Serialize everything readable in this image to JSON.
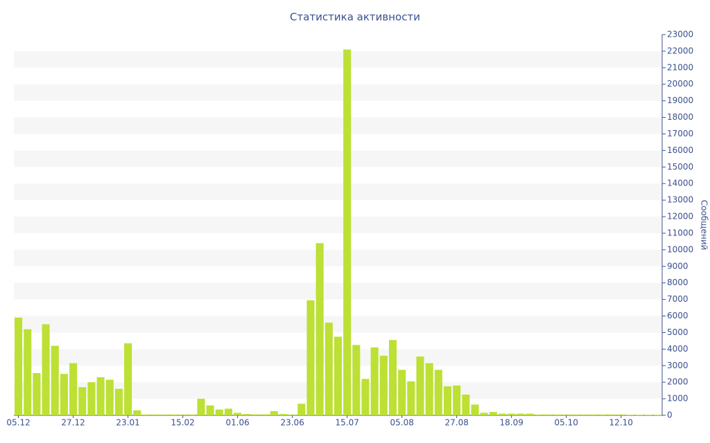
{
  "chart_data": {
    "type": "bar",
    "title": "Статистика активности",
    "y_label": "Сообщений",
    "categories": [
      "05.12",
      null,
      null,
      null,
      null,
      null,
      "27.12",
      null,
      null,
      null,
      null,
      null,
      "23.01",
      null,
      null,
      null,
      null,
      null,
      "15.02",
      null,
      null,
      null,
      null,
      null,
      "01.06",
      null,
      null,
      null,
      null,
      null,
      "23.06",
      null,
      null,
      null,
      null,
      null,
      "15.07",
      null,
      null,
      null,
      null,
      null,
      "05.08",
      null,
      null,
      null,
      null,
      null,
      "27.08",
      null,
      null,
      null,
      null,
      null,
      "18.09",
      null,
      null,
      null,
      null,
      null,
      "05.10",
      null,
      null,
      null,
      null,
      null,
      "12.10",
      null,
      null,
      null,
      null
    ],
    "values": [
      5900,
      5200,
      2550,
      5500,
      4200,
      2500,
      3150,
      1700,
      2000,
      2300,
      2150,
      1600,
      4350,
      300,
      50,
      50,
      50,
      50,
      50,
      50,
      1000,
      600,
      350,
      400,
      150,
      80,
      60,
      60,
      250,
      80,
      50,
      700,
      6950,
      10400,
      5600,
      4750,
      22100,
      4250,
      2200,
      4100,
      3600,
      4550,
      2750,
      2050,
      3550,
      3150,
      2750,
      1750,
      1800,
      1250,
      650,
      150,
      200,
      100,
      100,
      100,
      100,
      50,
      50,
      50,
      50,
      50,
      50,
      50,
      50,
      50,
      50,
      30,
      30,
      30,
      30
    ],
    "color": "#bce034",
    "ylim": [
      0,
      23000
    ],
    "yticks": [
      0,
      1000,
      2000,
      3000,
      4000,
      5000,
      6000,
      7000,
      8000,
      9000,
      10000,
      11000,
      12000,
      13000,
      14000,
      15000,
      16000,
      17000,
      18000,
      19000,
      20000,
      21000,
      22000,
      23000
    ],
    "grid": true
  }
}
